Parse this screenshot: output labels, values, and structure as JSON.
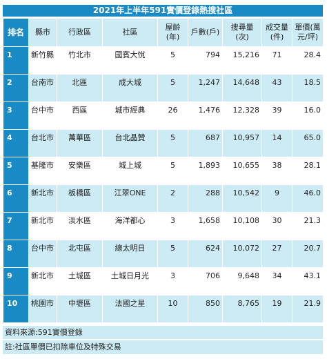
{
  "title": "2021年上半年591實價登錄熱搜社區",
  "headers": {
    "rank": "排名",
    "county": "縣市",
    "district": "行政區",
    "community": "社區",
    "age": "屋齡(年)",
    "units": "戶數(戶)",
    "searches": "搜尋量(次)",
    "deals": "成交量(件)",
    "price": "單價(萬元/坪)"
  },
  "rows": [
    {
      "rank": "1",
      "county": "新竹縣",
      "district": "竹北市",
      "community": "國賓大悅",
      "age": "5",
      "units": "794",
      "searches": "15,216",
      "deals": "71",
      "price": "28.4"
    },
    {
      "rank": "2",
      "county": "台南市",
      "district": "北區",
      "community": "成大城",
      "age": "5",
      "units": "1,247",
      "searches": "14,648",
      "deals": "43",
      "price": "18.5"
    },
    {
      "rank": "3",
      "county": "台中市",
      "district": "西區",
      "community": "城市經典",
      "age": "26",
      "units": "1,476",
      "searches": "12,328",
      "deals": "39",
      "price": "16.0"
    },
    {
      "rank": "4",
      "county": "台北市",
      "district": "萬華區",
      "community": "台北晶贊",
      "age": "5",
      "units": "687",
      "searches": "10,957",
      "deals": "14",
      "price": "65.0"
    },
    {
      "rank": "5",
      "county": "基隆市",
      "district": "安樂區",
      "community": "城上城",
      "age": "5",
      "units": "1,893",
      "searches": "10,655",
      "deals": "38",
      "price": "28.1"
    },
    {
      "rank": "6",
      "county": "新北市",
      "district": "板橋區",
      "community": "江翠ONE",
      "age": "2",
      "units": "288",
      "searches": "10,542",
      "deals": "9",
      "price": "46.0"
    },
    {
      "rank": "7",
      "county": "新北市",
      "district": "淡水區",
      "community": "海洋都心",
      "age": "3",
      "units": "1,658",
      "searches": "10,108",
      "deals": "30",
      "price": "21.3"
    },
    {
      "rank": "8",
      "county": "台中市",
      "district": "北屯區",
      "community": "總太明日",
      "age": "5",
      "units": "624",
      "searches": "10,072",
      "deals": "27",
      "price": "20.7"
    },
    {
      "rank": "9",
      "county": "新北市",
      "district": "土城區",
      "community": "土城日月光",
      "age": "3",
      "units": "706",
      "searches": "9,648",
      "deals": "34",
      "price": "43.1"
    },
    {
      "rank": "10",
      "county": "桃園市",
      "district": "中壢區",
      "community": "法國之星",
      "age": "10",
      "units": "850",
      "searches": "8,765",
      "deals": "19",
      "price": "21.9"
    }
  ],
  "footer": {
    "source": "資料來源:591實價登錄",
    "note": "註:社區單價已扣除車位及特殊交易"
  },
  "colors": {
    "accent_blue": "#1a8ac4",
    "light_blue": "#ccebf5"
  }
}
